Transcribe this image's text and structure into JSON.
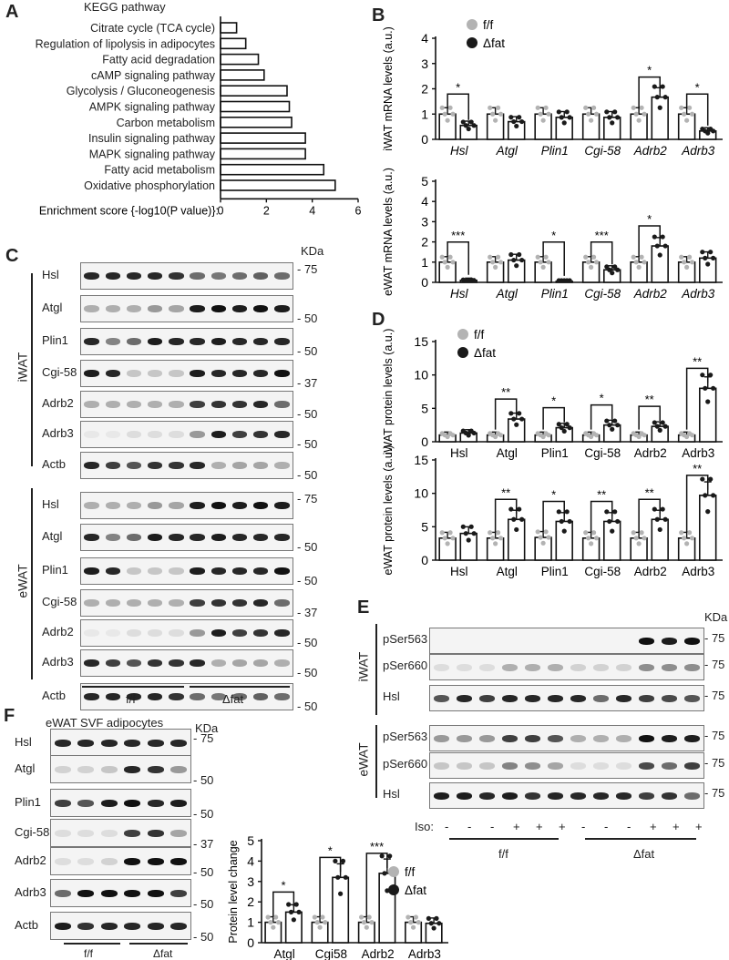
{
  "panels": {
    "A": {
      "label": "A",
      "title": "KEGG pathway"
    },
    "B": {
      "label": "B"
    },
    "C": {
      "label": "C",
      "kda": "KDa"
    },
    "D": {
      "label": "D"
    },
    "E": {
      "label": "E",
      "kda": "KDa"
    },
    "F": {
      "label": "F",
      "title": "eWAT SVF adipocytes",
      "kda": "KDa"
    }
  },
  "legend": {
    "ff": "f/f",
    "dfat": "Δfat",
    "ff_color": "#b3b3b3",
    "dfat_color": "#1a1a1a"
  },
  "chart_data": [
    {
      "id": "A",
      "type": "bar",
      "orientation": "horizontal",
      "title": "KEGG pathway",
      "xlabel": "Enrichment score {-log10(P value)}:",
      "categories": [
        "Citrate cycle (TCA cycle)",
        "Regulation of lipolysis in adipocytes",
        "Fatty acid degradation",
        "cAMP signaling pathway",
        "Glycolysis / Gluconeogenesis",
        "AMPK signaling pathway",
        "Carbon metabolism",
        "Insulin signaling pathway",
        "MAPK signaling pathway",
        "Fatty acid metabolism",
        "Oxidative phosphorylation"
      ],
      "values": [
        0.7,
        1.1,
        1.65,
        1.9,
        2.9,
        3.0,
        3.1,
        3.7,
        3.7,
        4.5,
        5.0
      ],
      "xlim": [
        0,
        6
      ],
      "xticks": [
        "0",
        "2",
        "4",
        "6"
      ]
    },
    {
      "id": "B-top",
      "type": "bar",
      "ylabel": "iWAT mRNA levels (a.u.)",
      "categories": [
        "Hsl",
        "Atgl",
        "Plin1",
        "Cgi-58",
        "Adrb2",
        "Adrb3"
      ],
      "series": [
        {
          "name": "f/f",
          "values": [
            1.0,
            1.0,
            1.0,
            1.0,
            1.0,
            1.0
          ]
        },
        {
          "name": "Δfat",
          "values": [
            0.55,
            0.7,
            0.87,
            0.87,
            1.67,
            0.33
          ]
        }
      ],
      "significance": [
        "*",
        "",
        "",
        "",
        "*",
        "*"
      ],
      "ylim": [
        0,
        4
      ],
      "yticks": [
        "0",
        "1",
        "2",
        "3",
        "4"
      ]
    },
    {
      "id": "B-bottom",
      "type": "bar",
      "ylabel": "eWAT mRNA levels (a.u.)",
      "categories": [
        "Hsl",
        "Atgl",
        "Plin1",
        "Cgi-58",
        "Adrb2",
        "Adrb3"
      ],
      "series": [
        {
          "name": "f/f",
          "values": [
            1.0,
            1.0,
            1.0,
            1.0,
            1.0,
            1.0
          ]
        },
        {
          "name": "Δfat",
          "values": [
            0.1,
            1.1,
            0.05,
            0.62,
            1.8,
            1.2
          ]
        }
      ],
      "significance": [
        "***",
        "",
        "*",
        "***",
        "*",
        ""
      ],
      "ylim": [
        0,
        5
      ],
      "yticks": [
        "0",
        "1",
        "2",
        "3",
        "4",
        "5"
      ]
    },
    {
      "id": "D-top",
      "type": "bar",
      "ylabel": "iWAT protein levels (a.u.)",
      "categories": [
        "Hsl",
        "Atgl",
        "Plin1",
        "Cgi-58",
        "Adrb2",
        "Adrb3"
      ],
      "series": [
        {
          "name": "f/f",
          "values": [
            1.0,
            1.0,
            1.0,
            1.0,
            1.0,
            1.0
          ]
        },
        {
          "name": "Δfat",
          "values": [
            1.3,
            3.4,
            2.1,
            2.5,
            2.3,
            8.0
          ]
        }
      ],
      "significance": [
        "",
        "**",
        "*",
        "*",
        "**",
        "**"
      ],
      "ylim": [
        0,
        15
      ],
      "yticks": [
        "0",
        "5",
        "10",
        "15"
      ]
    },
    {
      "id": "D-bottom",
      "type": "bar",
      "ylabel": "eWAT protein levels (a.u.)",
      "categories": [
        "Hsl",
        "Atgl",
        "Plin1",
        "Cgi-58",
        "Adrb2",
        "Adrb3"
      ],
      "series": [
        {
          "name": "f/f",
          "values": [
            3.3,
            3.3,
            3.4,
            3.3,
            3.3,
            3.3
          ]
        },
        {
          "name": "Δfat",
          "values": [
            4.0,
            6.1,
            5.8,
            5.8,
            6.1,
            9.7
          ]
        }
      ],
      "significance": [
        "",
        "**",
        "*",
        "**",
        "**",
        "**"
      ],
      "ylim": [
        0,
        15
      ],
      "yticks": [
        "0",
        "5",
        "10",
        "15"
      ]
    },
    {
      "id": "F-chart",
      "type": "bar",
      "ylabel": "Protein level change",
      "categories": [
        "Atgl",
        "Cgi58",
        "Adrb2",
        "Adrb3"
      ],
      "series": [
        {
          "name": "f/f",
          "values": [
            1.0,
            1.0,
            1.0,
            1.0
          ]
        },
        {
          "name": "Δfat",
          "values": [
            1.5,
            3.2,
            3.4,
            0.95
          ]
        }
      ],
      "significance": [
        "*",
        "*",
        "***",
        ""
      ],
      "ylim": [
        0,
        5
      ],
      "yticks": [
        "0",
        "1",
        "2",
        "3",
        "4",
        "5"
      ]
    }
  ],
  "blotC": {
    "iwat_label": "iWAT",
    "ewat_label": "eWAT",
    "iwat_rows": [
      {
        "label": "Hsl",
        "kda": "75"
      },
      {
        "label": "Atgl",
        "kda": "50"
      },
      {
        "label": "Plin1",
        "kda": "50"
      },
      {
        "label": "Cgi-58",
        "kda": "37"
      },
      {
        "label": "Adrb2",
        "kda": "50"
      },
      {
        "label": "Adrb3",
        "kda": "50"
      },
      {
        "label": "Actb",
        "kda": "50"
      }
    ],
    "ewat_rows": [
      {
        "label": "Hsl",
        "kda": "75"
      },
      {
        "label": "Atgl",
        "kda": "50"
      },
      {
        "label": "Plin1",
        "kda": "50"
      },
      {
        "label": "Cgi-58",
        "kda": "37"
      },
      {
        "label": "Adrb2",
        "kda": "50"
      },
      {
        "label": "Adrb3",
        "kda": "50"
      },
      {
        "label": "Actb",
        "kda": "50"
      }
    ],
    "group_ff": "f/f",
    "group_dfat": "Δfat"
  },
  "blotE": {
    "iwat_label": "iWAT",
    "ewat_label": "eWAT",
    "iwat_rows": [
      {
        "label": "pSer563",
        "kda": "75"
      },
      {
        "label": "pSer660",
        "kda": "75"
      },
      {
        "label": "Hsl",
        "kda": "75"
      }
    ],
    "ewat_rows": [
      {
        "label": "pSer563",
        "kda": "75"
      },
      {
        "label": "pSer660",
        "kda": "75"
      },
      {
        "label": "Hsl",
        "kda": "75"
      }
    ],
    "iso_label": "Iso:",
    "iso": [
      "-",
      "-",
      "-",
      "+",
      "+",
      "+",
      "-",
      "-",
      "-",
      "+",
      "+",
      "+"
    ],
    "group_ff": "f/f",
    "group_dfat": "Δfat"
  },
  "blotF": {
    "rows": [
      {
        "label": "Hsl",
        "kda": "75"
      },
      {
        "label": "Atgl",
        "kda": "50"
      },
      {
        "label": "Plin1",
        "kda": "50"
      },
      {
        "label": "Cgi-58",
        "kda": "37"
      },
      {
        "label": "Adrb2",
        "kda": "50"
      },
      {
        "label": "Adrb3",
        "kda": "50"
      },
      {
        "label": "Actb",
        "kda": "50"
      }
    ],
    "group_ff": "f/f",
    "group_dfat": "Δfat"
  }
}
